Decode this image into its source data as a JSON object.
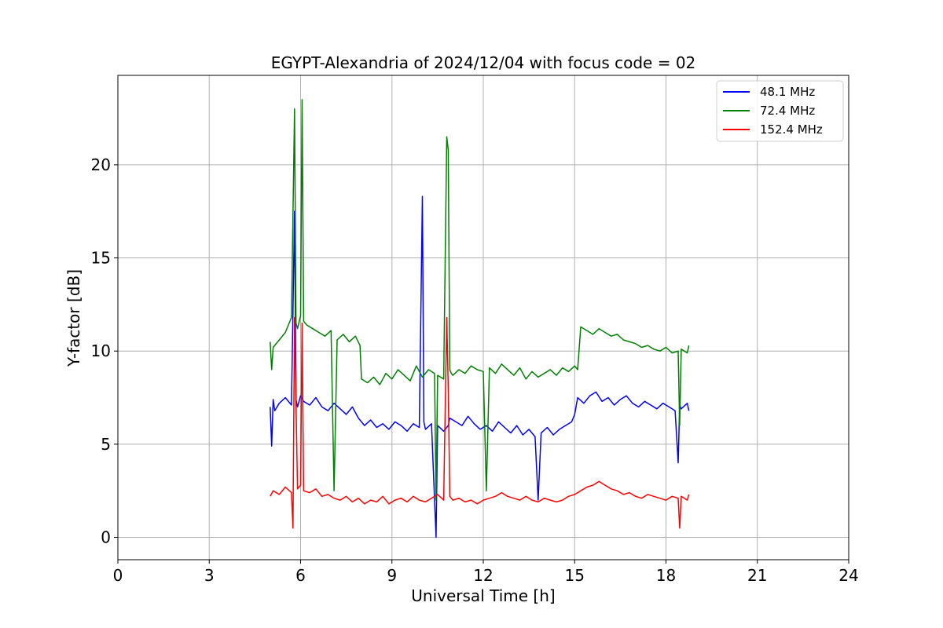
{
  "chart_data": {
    "type": "line",
    "title": "EGYPT-Alexandria of 2024/12/04 with focus code = 02",
    "xlabel": "Universal Time [h]",
    "ylabel": "Y-factor [dB]",
    "xlim": [
      0,
      24
    ],
    "ylim": [
      -1.2,
      24.8
    ],
    "xticks": [
      0,
      3,
      6,
      9,
      12,
      15,
      18,
      21,
      24
    ],
    "yticks": [
      0,
      5,
      10,
      15,
      20
    ],
    "grid": true,
    "legend_position": "top-right",
    "series": [
      {
        "name": " 48.1 MHz",
        "color": "#0000ff",
        "x": [
          5.0,
          5.05,
          5.1,
          5.15,
          5.3,
          5.5,
          5.7,
          5.8,
          5.85,
          5.9,
          6.0,
          6.1,
          6.3,
          6.5,
          6.7,
          6.9,
          7.1,
          7.3,
          7.5,
          7.7,
          7.9,
          8.1,
          8.3,
          8.5,
          8.7,
          8.9,
          9.1,
          9.3,
          9.5,
          9.7,
          9.9,
          10.0,
          10.05,
          10.1,
          10.3,
          10.45,
          10.5,
          10.7,
          10.85,
          10.9,
          11.1,
          11.3,
          11.5,
          11.7,
          11.9,
          12.1,
          12.3,
          12.5,
          12.7,
          12.9,
          13.1,
          13.3,
          13.5,
          13.7,
          13.8,
          13.9,
          14.1,
          14.3,
          14.5,
          14.7,
          14.9,
          15.0,
          15.1,
          15.3,
          15.5,
          15.7,
          15.9,
          16.1,
          16.3,
          16.5,
          16.7,
          16.9,
          17.1,
          17.3,
          17.5,
          17.7,
          17.9,
          18.1,
          18.3,
          18.4,
          18.45,
          18.5,
          18.7,
          18.75
        ],
        "y": [
          7.0,
          4.9,
          7.4,
          6.8,
          7.2,
          7.5,
          7.1,
          17.5,
          7.4,
          7.0,
          7.6,
          7.3,
          7.1,
          7.5,
          7.0,
          6.8,
          7.2,
          6.9,
          6.6,
          7.0,
          6.4,
          6.0,
          6.3,
          5.9,
          6.1,
          5.8,
          6.2,
          6.0,
          5.7,
          6.1,
          5.9,
          18.3,
          6.2,
          5.8,
          6.1,
          0.0,
          6.0,
          5.7,
          6.0,
          6.4,
          6.2,
          6.0,
          6.5,
          6.1,
          5.8,
          6.0,
          5.7,
          6.2,
          5.9,
          5.6,
          6.0,
          5.5,
          5.8,
          5.4,
          2.0,
          5.6,
          5.9,
          5.5,
          5.8,
          6.0,
          6.2,
          6.6,
          7.5,
          7.2,
          7.6,
          7.8,
          7.3,
          7.5,
          7.1,
          7.4,
          7.6,
          7.2,
          7.0,
          7.3,
          7.1,
          6.9,
          7.2,
          7.0,
          6.8,
          4.0,
          7.1,
          6.9,
          7.2,
          6.8
        ]
      },
      {
        "name": " 72.4 MHz",
        "color": "#008000",
        "x": [
          5.0,
          5.05,
          5.1,
          5.3,
          5.5,
          5.7,
          5.8,
          5.85,
          5.9,
          6.0,
          6.05,
          6.1,
          6.2,
          6.4,
          6.6,
          6.8,
          7.0,
          7.1,
          7.2,
          7.4,
          7.6,
          7.8,
          7.95,
          8.0,
          8.2,
          8.4,
          8.6,
          8.8,
          9.0,
          9.2,
          9.4,
          9.6,
          9.8,
          10.0,
          10.2,
          10.4,
          10.45,
          10.5,
          10.7,
          10.8,
          10.85,
          10.9,
          10.95,
          11.0,
          11.2,
          11.4,
          11.6,
          11.8,
          12.0,
          12.1,
          12.2,
          12.4,
          12.6,
          12.8,
          13.0,
          13.2,
          13.4,
          13.6,
          13.8,
          14.0,
          14.2,
          14.4,
          14.6,
          14.8,
          15.0,
          15.1,
          15.2,
          15.4,
          15.6,
          15.8,
          16.0,
          16.2,
          16.4,
          16.6,
          16.8,
          17.0,
          17.2,
          17.4,
          17.6,
          17.8,
          18.0,
          18.2,
          18.4,
          18.45,
          18.5,
          18.7,
          18.75
        ],
        "y": [
          10.5,
          9.0,
          10.2,
          10.6,
          11.0,
          11.8,
          23.0,
          11.5,
          11.2,
          11.9,
          23.5,
          11.6,
          11.4,
          11.2,
          11.0,
          10.8,
          11.1,
          2.5,
          10.6,
          10.9,
          10.5,
          10.8,
          10.3,
          8.5,
          8.3,
          8.6,
          8.2,
          8.8,
          8.5,
          9.0,
          8.7,
          8.4,
          9.2,
          8.6,
          9.0,
          8.8,
          2.0,
          8.7,
          8.5,
          21.5,
          20.8,
          9.0,
          8.8,
          8.7,
          9.0,
          8.8,
          9.2,
          9.0,
          8.9,
          2.5,
          9.1,
          8.8,
          9.3,
          9.0,
          8.7,
          9.1,
          8.5,
          8.9,
          8.6,
          8.8,
          9.0,
          8.7,
          9.1,
          8.9,
          9.2,
          9.0,
          11.3,
          11.1,
          10.9,
          11.2,
          11.0,
          10.8,
          10.9,
          10.6,
          10.5,
          10.4,
          10.2,
          10.3,
          10.1,
          10.0,
          10.2,
          9.9,
          10.0,
          6.0,
          10.1,
          9.9,
          10.3
        ]
      },
      {
        "name": " 152.4 MHz",
        "color": "#ff0000",
        "x": [
          5.0,
          5.1,
          5.3,
          5.5,
          5.7,
          5.75,
          5.8,
          5.9,
          6.0,
          6.05,
          6.1,
          6.3,
          6.5,
          6.7,
          6.9,
          7.1,
          7.3,
          7.5,
          7.7,
          7.9,
          8.1,
          8.3,
          8.5,
          8.7,
          8.9,
          9.1,
          9.3,
          9.5,
          9.7,
          9.9,
          10.1,
          10.3,
          10.5,
          10.7,
          10.8,
          10.85,
          10.9,
          11.0,
          11.2,
          11.4,
          11.6,
          11.8,
          12.0,
          12.2,
          12.4,
          12.6,
          12.8,
          13.0,
          13.2,
          13.4,
          13.6,
          13.8,
          14.0,
          14.2,
          14.4,
          14.6,
          14.8,
          15.0,
          15.2,
          15.4,
          15.6,
          15.8,
          16.0,
          16.2,
          16.4,
          16.6,
          16.8,
          17.0,
          17.2,
          17.4,
          17.6,
          17.8,
          18.0,
          18.2,
          18.4,
          18.45,
          18.5,
          18.7,
          18.75
        ],
        "y": [
          2.2,
          2.5,
          2.3,
          2.7,
          2.4,
          0.5,
          11.8,
          2.6,
          2.8,
          11.5,
          2.5,
          2.4,
          2.6,
          2.2,
          2.3,
          2.1,
          2.0,
          2.2,
          1.9,
          2.1,
          1.8,
          2.0,
          1.9,
          2.2,
          1.8,
          2.0,
          2.1,
          1.9,
          2.2,
          2.0,
          1.9,
          2.1,
          2.3,
          2.0,
          11.8,
          8.0,
          2.2,
          2.0,
          2.1,
          1.9,
          2.0,
          1.8,
          2.0,
          2.1,
          2.2,
          2.4,
          2.2,
          2.1,
          2.0,
          2.2,
          2.0,
          1.9,
          2.1,
          2.0,
          1.9,
          2.0,
          2.2,
          2.3,
          2.5,
          2.7,
          2.8,
          3.0,
          2.8,
          2.6,
          2.5,
          2.3,
          2.4,
          2.2,
          2.1,
          2.3,
          2.2,
          2.1,
          2.0,
          2.2,
          2.1,
          0.5,
          2.2,
          2.0,
          2.3
        ]
      }
    ]
  }
}
